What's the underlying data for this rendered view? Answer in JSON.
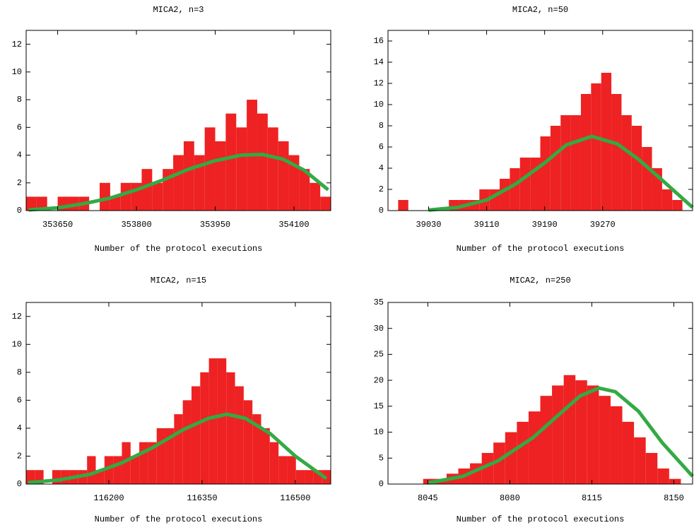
{
  "chart_data": [
    {
      "type": "histogram",
      "title": "MICA2, n=3",
      "xlabel": "Number of the protocol executions",
      "color": "#ee2222",
      "bins": [
        353590,
        353610,
        353630,
        353650,
        353670,
        353690,
        353710,
        353730,
        353750,
        353770,
        353790,
        353810,
        353830,
        353850,
        353870,
        353890,
        353910,
        353930,
        353950,
        353970,
        353990,
        354010,
        354030,
        354050,
        354070,
        354090,
        354110,
        354130,
        354150,
        354170
      ],
      "counts": [
        1,
        1,
        0,
        1,
        1,
        1,
        0,
        2,
        1,
        2,
        2,
        3,
        2,
        3,
        4,
        5,
        4,
        6,
        5,
        7,
        6,
        8,
        7,
        6,
        5,
        4,
        3,
        2,
        1
      ],
      "xlim": [
        353590,
        354170
      ],
      "xticks": [
        353650,
        353800,
        353950,
        354100
      ],
      "ylim": [
        0,
        13
      ],
      "yticks": [
        0,
        2,
        4,
        6,
        8,
        10,
        12
      ],
      "fit": {
        "color": "#33aa44",
        "x": [
          353595,
          353650,
          353700,
          353750,
          353800,
          353850,
          353900,
          353950,
          354000,
          354040,
          354080,
          354120,
          354165
        ],
        "y": [
          0.05,
          0.2,
          0.5,
          0.9,
          1.5,
          2.2,
          3.0,
          3.6,
          4.0,
          4.05,
          3.7,
          2.9,
          1.5
        ]
      }
    },
    {
      "type": "histogram",
      "title": "MICA2, n=50",
      "xlabel": "Number of the protocol executions",
      "color": "#ee2222",
      "bins": [
        38974,
        38988,
        39002,
        39016,
        39030,
        39044,
        39058,
        39072,
        39086,
        39100,
        39114,
        39128,
        39142,
        39156,
        39170,
        39184,
        39198,
        39212,
        39226,
        39240,
        39254,
        39268,
        39282,
        39296,
        39310,
        39324,
        39338,
        39352,
        39366,
        39380,
        39394
      ],
      "counts": [
        0,
        1,
        0,
        0,
        0,
        0,
        1,
        1,
        1,
        2,
        2,
        3,
        4,
        5,
        5,
        7,
        8,
        9,
        9,
        11,
        12,
        13,
        11,
        9,
        8,
        6,
        4,
        2,
        1,
        0
      ],
      "xlim": [
        38974,
        39394
      ],
      "xticks": [
        39030,
        39110,
        39190,
        39270
      ],
      "ylim": [
        0,
        17
      ],
      "yticks": [
        0,
        2,
        4,
        6,
        8,
        10,
        12,
        14,
        16
      ],
      "fit": {
        "color": "#33aa44",
        "x": [
          39030,
          39070,
          39110,
          39150,
          39190,
          39220,
          39255,
          39290,
          39320,
          39350,
          39394
        ],
        "y": [
          0.05,
          0.3,
          1.0,
          2.5,
          4.5,
          6.2,
          7.0,
          6.3,
          4.8,
          3.0,
          0.3
        ]
      }
    },
    {
      "type": "histogram",
      "title": "MICA2, n=15",
      "xlabel": "Number of the protocol executions",
      "color": "#ee2222",
      "bins": [
        116067,
        116081,
        116095,
        116109,
        116123,
        116137,
        116151,
        116165,
        116179,
        116193,
        116207,
        116221,
        116235,
        116249,
        116263,
        116277,
        116291,
        116305,
        116319,
        116333,
        116347,
        116361,
        116375,
        116389,
        116403,
        116417,
        116431,
        116445,
        116459,
        116473,
        116487,
        116501,
        116515,
        116529,
        116543,
        116557
      ],
      "counts": [
        1,
        1,
        0,
        1,
        1,
        1,
        1,
        2,
        1,
        2,
        2,
        3,
        2,
        3,
        3,
        4,
        4,
        5,
        6,
        7,
        8,
        9,
        9,
        8,
        7,
        6,
        5,
        4,
        3,
        2,
        2,
        1,
        1,
        1,
        1
      ],
      "xlim": [
        116067,
        116557
      ],
      "xticks": [
        116200,
        116350,
        116500
      ],
      "ylim": [
        0,
        13
      ],
      "yticks": [
        0,
        2,
        4,
        6,
        8,
        10,
        12
      ],
      "fit": {
        "color": "#33aa44",
        "x": [
          116070,
          116120,
          116170,
          116220,
          116270,
          116320,
          116360,
          116390,
          116420,
          116460,
          116500,
          116550
        ],
        "y": [
          0.1,
          0.3,
          0.7,
          1.5,
          2.6,
          3.9,
          4.7,
          5.0,
          4.7,
          3.6,
          2.0,
          0.4
        ]
      }
    },
    {
      "type": "histogram",
      "title": "MICA2, n=250",
      "xlabel": "Number of the protocol executions",
      "color": "#ee2222",
      "bins": [
        8028,
        8033,
        8038,
        8043,
        8048,
        8053,
        8058,
        8063,
        8068,
        8073,
        8078,
        8083,
        8088,
        8093,
        8098,
        8103,
        8108,
        8113,
        8118,
        8123,
        8128,
        8133,
        8138,
        8143,
        8148,
        8153,
        8158
      ],
      "counts": [
        0,
        0,
        0,
        1,
        1,
        2,
        3,
        4,
        6,
        8,
        10,
        12,
        14,
        17,
        19,
        21,
        20,
        19,
        17,
        15,
        12,
        9,
        6,
        3,
        1,
        0
      ],
      "xlim": [
        8028,
        8158
      ],
      "xticks": [
        8045,
        8080,
        8115,
        8150
      ],
      "ylim": [
        0,
        35
      ],
      "yticks": [
        0,
        5,
        10,
        15,
        20,
        25,
        30,
        35
      ],
      "fit": {
        "color": "#33aa44",
        "x": [
          8045,
          8060,
          8075,
          8090,
          8100,
          8110,
          8118,
          8125,
          8135,
          8145,
          8158
        ],
        "y": [
          0.2,
          1.5,
          4.5,
          9,
          13,
          17,
          18.5,
          17.8,
          14,
          8,
          1.5
        ]
      }
    }
  ]
}
